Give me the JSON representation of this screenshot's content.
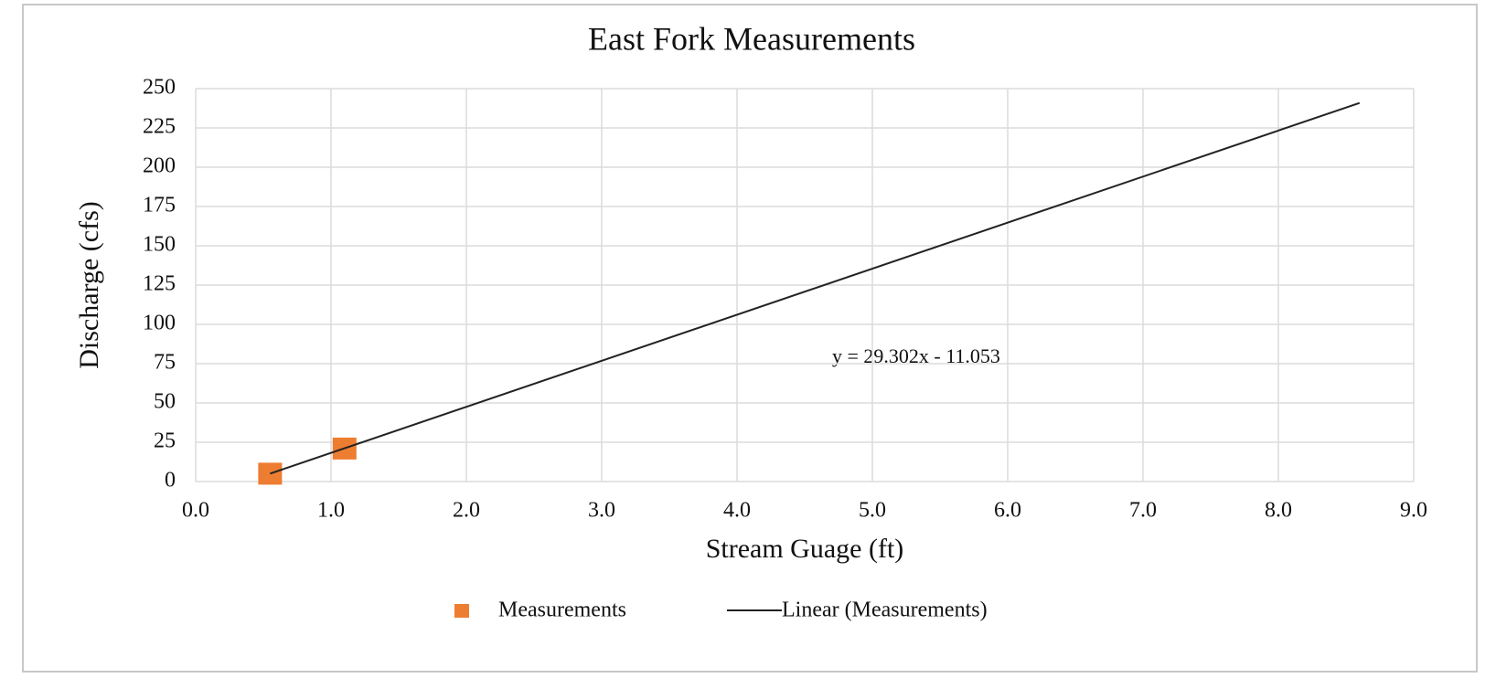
{
  "chart_data": {
    "type": "scatter",
    "title": "East Fork Measurements",
    "x_label": "Stream Guage (ft)",
    "y_label": "Discharge (cfs)",
    "annotation": "y = 29.302x - 11.053",
    "xlim": [
      0,
      9
    ],
    "ylim": [
      0,
      250
    ],
    "xticks": [
      {
        "value": 0,
        "label": "0.0"
      },
      {
        "value": 1,
        "label": "1.0"
      },
      {
        "value": 2,
        "label": "2.0"
      },
      {
        "value": 3,
        "label": "3.0"
      },
      {
        "value": 4,
        "label": "4.0"
      },
      {
        "value": 5,
        "label": "5.0"
      },
      {
        "value": 6,
        "label": "6.0"
      },
      {
        "value": 7,
        "label": "7.0"
      },
      {
        "value": 8,
        "label": "8.0"
      },
      {
        "value": 9,
        "label": "9.0"
      }
    ],
    "yticks": [
      0,
      25,
      50,
      75,
      100,
      125,
      150,
      175,
      200,
      225,
      250
    ],
    "grid": true,
    "legend": "bottom",
    "series": [
      {
        "name": "Measurements",
        "color": "#ed7d31",
        "mode": "markers",
        "x": [
          0.55,
          1.1
        ],
        "values": [
          5,
          21
        ]
      },
      {
        "name": "Linear (Measurements)",
        "color": "#222222",
        "mode": "line",
        "x": [
          0.55,
          8.6
        ],
        "values": [
          5.06,
          240.9
        ]
      }
    ]
  }
}
